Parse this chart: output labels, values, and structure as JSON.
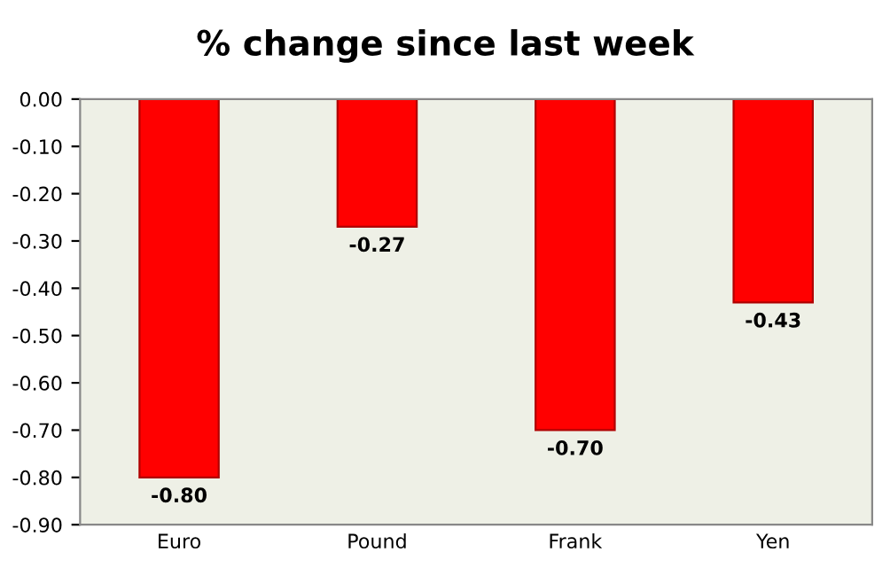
{
  "chart_data": {
    "type": "bar",
    "title": "% change since last week",
    "categories": [
      "Euro",
      "Pound",
      "Frank",
      "Yen"
    ],
    "values": [
      -0.8,
      -0.27,
      -0.7,
      -0.43
    ],
    "value_labels": [
      "-0.80",
      "-0.27",
      "-0.70",
      "-0.43"
    ],
    "color": "#ff0000",
    "ylim": [
      -0.9,
      0
    ],
    "yticks": [
      {
        "value": 0,
        "label": "0.00"
      },
      {
        "value": -0.1,
        "label": "-0.10"
      },
      {
        "value": -0.2,
        "label": "-0.20"
      },
      {
        "value": -0.3,
        "label": "-0.30"
      },
      {
        "value": -0.4,
        "label": "-0.40"
      },
      {
        "value": -0.5,
        "label": "-0.50"
      },
      {
        "value": -0.6,
        "label": "-0.60"
      },
      {
        "value": -0.7,
        "label": "-0.70"
      },
      {
        "value": -0.8,
        "label": "-0.80"
      },
      {
        "value": -0.9,
        "label": "-0.90"
      }
    ],
    "grid": false
  }
}
